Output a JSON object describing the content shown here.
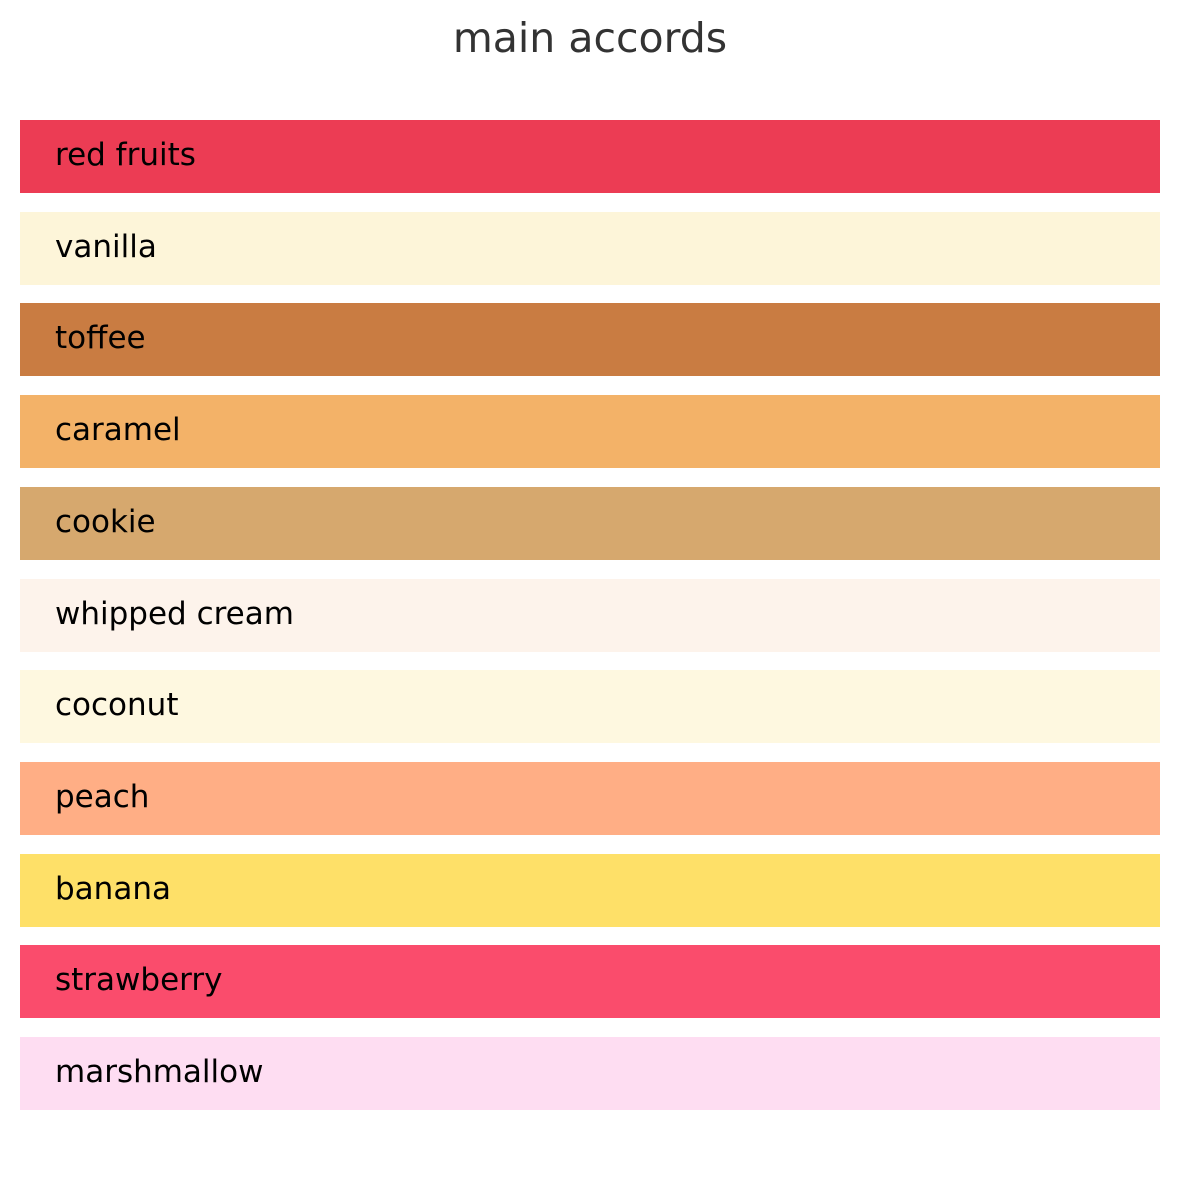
{
  "chart_data": {
    "type": "bar",
    "title": "main accords",
    "categories": [
      "red fruits",
      "vanilla",
      "toffee",
      "caramel",
      "cookie",
      "whipped cream",
      "coconut",
      "peach",
      "banana",
      "strawberry",
      "marshmallow"
    ],
    "values": [
      100,
      100,
      100,
      100,
      100,
      100,
      100,
      100,
      100,
      100,
      100
    ],
    "colors": [
      "#EC3C54",
      "#FDF5D9",
      "#C97C42",
      "#F3B268",
      "#D6A86E",
      "#FDF3EB",
      "#FEF8E0",
      "#FFAE85",
      "#FEE068",
      "#FA4C6C",
      "#FEDDF2"
    ],
    "orientation": "horizontal",
    "grid": false
  }
}
